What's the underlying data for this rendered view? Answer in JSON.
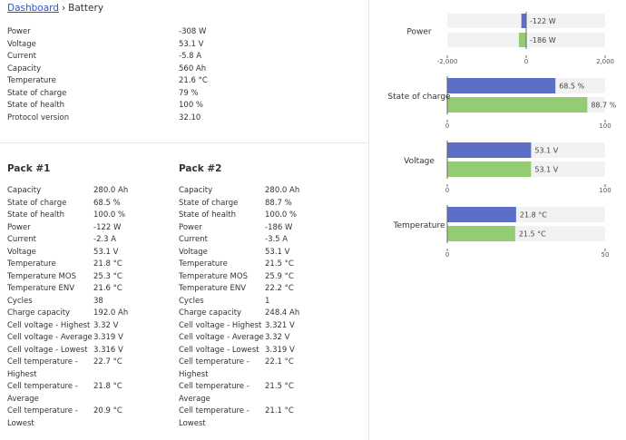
{
  "breadcrumb": {
    "link": "Dashboard",
    "separator": "›",
    "current": "Battery"
  },
  "summary": [
    {
      "label": "Power",
      "value": "-308 W"
    },
    {
      "label": "Voltage",
      "value": "53.1 V"
    },
    {
      "label": "Current",
      "value": "-5.8 A"
    },
    {
      "label": "Capacity",
      "value": "560 Ah"
    },
    {
      "label": "Temperature",
      "value": "21.6 °C"
    },
    {
      "label": "State of charge",
      "value": "79 %"
    },
    {
      "label": "State of health",
      "value": "100 %"
    },
    {
      "label": "Protocol version",
      "value": "32.10"
    }
  ],
  "packs": [
    {
      "title": "Pack #1",
      "rows": [
        {
          "label": "Capacity",
          "value": "280.0 Ah"
        },
        {
          "label": "State of charge",
          "value": "68.5 %"
        },
        {
          "label": "State of health",
          "value": "100.0 %"
        },
        {
          "label": "Power",
          "value": "-122 W"
        },
        {
          "label": "Current",
          "value": "-2.3 A"
        },
        {
          "label": "Voltage",
          "value": "53.1 V"
        },
        {
          "label": "Temperature",
          "value": "21.8 °C"
        },
        {
          "label": "Temperature MOS",
          "value": "25.3 °C"
        },
        {
          "label": "Temperature ENV",
          "value": "21.6 °C"
        },
        {
          "label": "Cycles",
          "value": "38"
        },
        {
          "label": "Charge capacity",
          "value": "192.0 Ah"
        },
        {
          "label": "Cell voltage - Highest",
          "value": "3.32 V"
        },
        {
          "label": "Cell voltage - Average",
          "value": "3.319 V"
        },
        {
          "label": "Cell voltage - Lowest",
          "value": "3.316 V"
        },
        {
          "label": "Cell temperature - Highest",
          "value": "22.7 °C"
        },
        {
          "label": "Cell temperature - Average",
          "value": "21.8 °C"
        },
        {
          "label": "Cell temperature - Lowest",
          "value": "20.9 °C"
        }
      ]
    },
    {
      "title": "Pack #2",
      "rows": [
        {
          "label": "Capacity",
          "value": "280.0 Ah"
        },
        {
          "label": "State of charge",
          "value": "88.7 %"
        },
        {
          "label": "State of health",
          "value": "100.0 %"
        },
        {
          "label": "Power",
          "value": "-186 W"
        },
        {
          "label": "Current",
          "value": "-3.5 A"
        },
        {
          "label": "Voltage",
          "value": "53.1 V"
        },
        {
          "label": "Temperature",
          "value": "21.5 °C"
        },
        {
          "label": "Temperature MOS",
          "value": "25.9 °C"
        },
        {
          "label": "Temperature ENV",
          "value": "22.2 °C"
        },
        {
          "label": "Cycles",
          "value": "1"
        },
        {
          "label": "Charge capacity",
          "value": "248.4 Ah"
        },
        {
          "label": "Cell voltage - Highest",
          "value": "3.321 V"
        },
        {
          "label": "Cell voltage - Average",
          "value": "3.32 V"
        },
        {
          "label": "Cell voltage - Lowest",
          "value": "3.319 V"
        },
        {
          "label": "Cell temperature - Highest",
          "value": "22.1 °C"
        },
        {
          "label": "Cell temperature - Average",
          "value": "21.5 °C"
        },
        {
          "label": "Cell temperature - Lowest",
          "value": "21.1 °C"
        }
      ]
    }
  ],
  "colors": {
    "pack1": "#5b6fc7",
    "pack2": "#93cc73",
    "band": "#f2f2f2",
    "axis": "#666666",
    "link": "#2f55c7"
  },
  "chart_data": [
    {
      "type": "bar",
      "orientation": "horizontal",
      "title": "Power",
      "series": [
        {
          "values": [
            -122
          ],
          "labels": [
            "-122 W"
          ]
        },
        {
          "values": [
            -186
          ],
          "labels": [
            "-186 W"
          ]
        }
      ],
      "xlim": [
        -2000,
        2000
      ],
      "tick_labels": [
        "-2,000",
        "0",
        "2,000"
      ]
    },
    {
      "type": "bar",
      "orientation": "horizontal",
      "title": "State of charge",
      "series": [
        {
          "values": [
            68.5
          ],
          "labels": [
            "68.5 %"
          ]
        },
        {
          "values": [
            88.7
          ],
          "labels": [
            "88.7 %"
          ]
        }
      ],
      "xlim": [
        0,
        100
      ],
      "tick_labels": [
        "0",
        "100"
      ]
    },
    {
      "type": "bar",
      "orientation": "horizontal",
      "title": "Voltage",
      "series": [
        {
          "values": [
            53.1
          ],
          "labels": [
            "53.1 V"
          ]
        },
        {
          "values": [
            53.1
          ],
          "labels": [
            "53.1 V"
          ]
        }
      ],
      "xlim": [
        0,
        100
      ],
      "tick_labels": [
        "0",
        "100"
      ]
    },
    {
      "type": "bar",
      "orientation": "horizontal",
      "title": "Temperature",
      "series": [
        {
          "values": [
            21.8
          ],
          "labels": [
            "21.8 °C"
          ]
        },
        {
          "values": [
            21.5
          ],
          "labels": [
            "21.5 °C"
          ]
        }
      ],
      "xlim": [
        0,
        50
      ],
      "tick_labels": [
        "0",
        "50"
      ]
    }
  ]
}
